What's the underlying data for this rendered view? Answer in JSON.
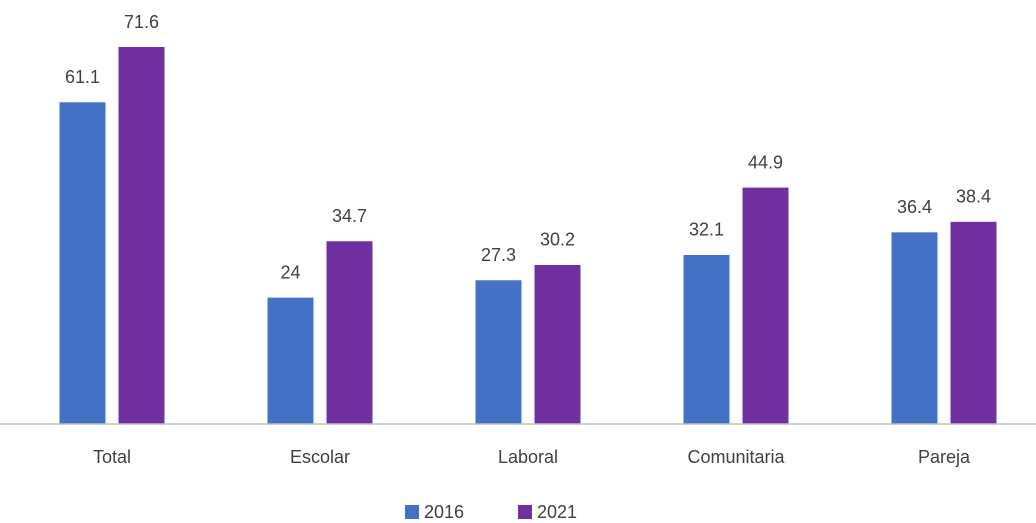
{
  "chart_data": {
    "type": "bar",
    "categories": [
      "Total",
      "Escolar",
      "Laboral",
      "Comunitaria",
      "Pareja"
    ],
    "series": [
      {
        "name": "2016",
        "color": "#4472c4",
        "values": [
          61.1,
          24,
          27.3,
          32.1,
          36.4
        ]
      },
      {
        "name": "2021",
        "color": "#7030a0",
        "values": [
          71.6,
          34.7,
          30.2,
          44.9,
          38.4
        ]
      }
    ]
  }
}
